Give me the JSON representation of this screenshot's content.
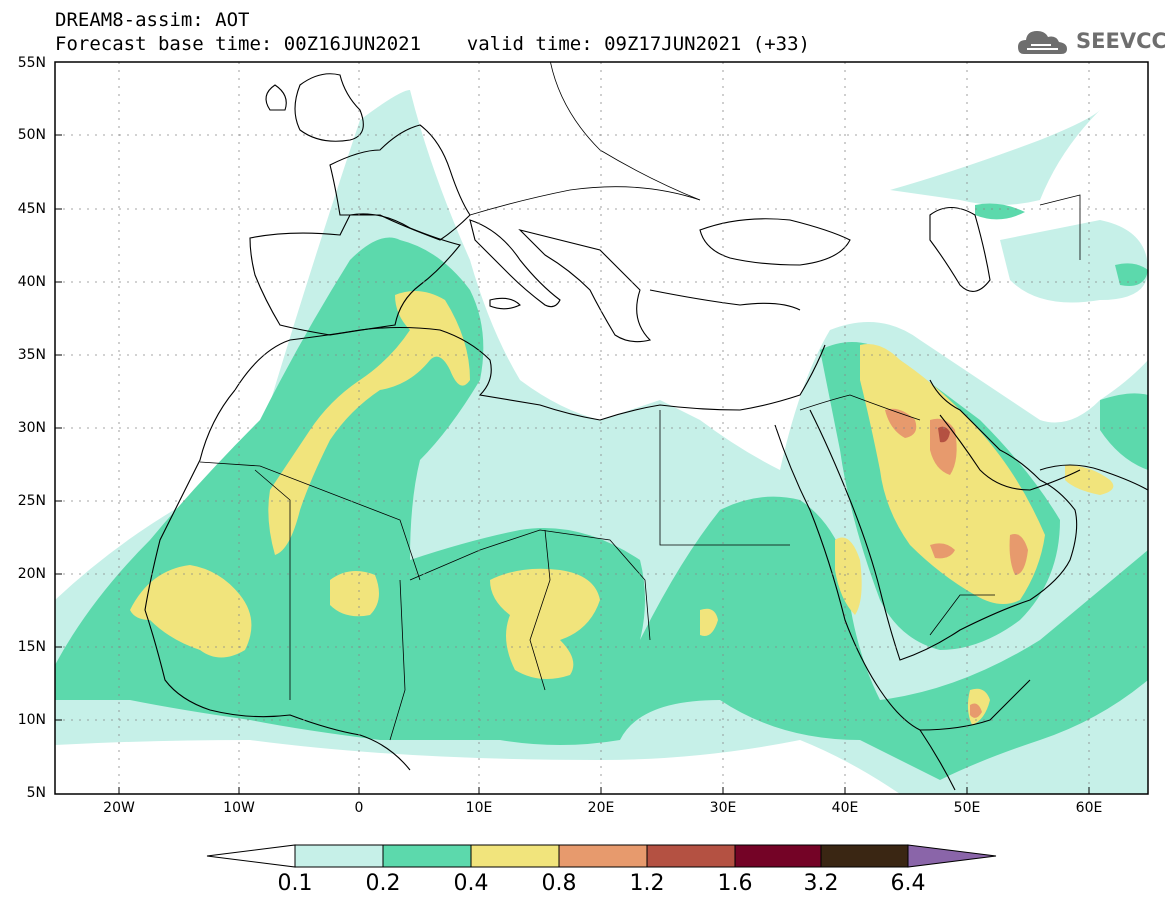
{
  "header": {
    "title_line1": "DREAM8-assim: AOT",
    "title_line2": "Forecast base time: 00Z16JUN2021    valid time: 09Z17JUN2021 (+33)",
    "logo_text": "SEEVCCC",
    "logo_icon": "cloud-icon"
  },
  "map": {
    "lat_labels": [
      "55N",
      "50N",
      "45N",
      "40N",
      "35N",
      "30N",
      "25N",
      "20N",
      "15N",
      "10N",
      "5N"
    ],
    "lon_labels": [
      "20W",
      "10W",
      "0",
      "10E",
      "20E",
      "30E",
      "40E",
      "50E",
      "60E"
    ],
    "lon_range": [
      -25,
      65
    ],
    "lat_range": [
      5,
      55
    ],
    "grid": true
  },
  "colorbar": {
    "levels": [
      "0.1",
      "0.2",
      "0.4",
      "0.8",
      "1.2",
      "1.6",
      "3.2",
      "6.4"
    ],
    "colors": [
      "#ffffff",
      "#c6f0e8",
      "#5cd9ac",
      "#f1e47c",
      "#e79a6d",
      "#b45142",
      "#740326",
      "#3a2613",
      "#8a65a9"
    ]
  }
}
